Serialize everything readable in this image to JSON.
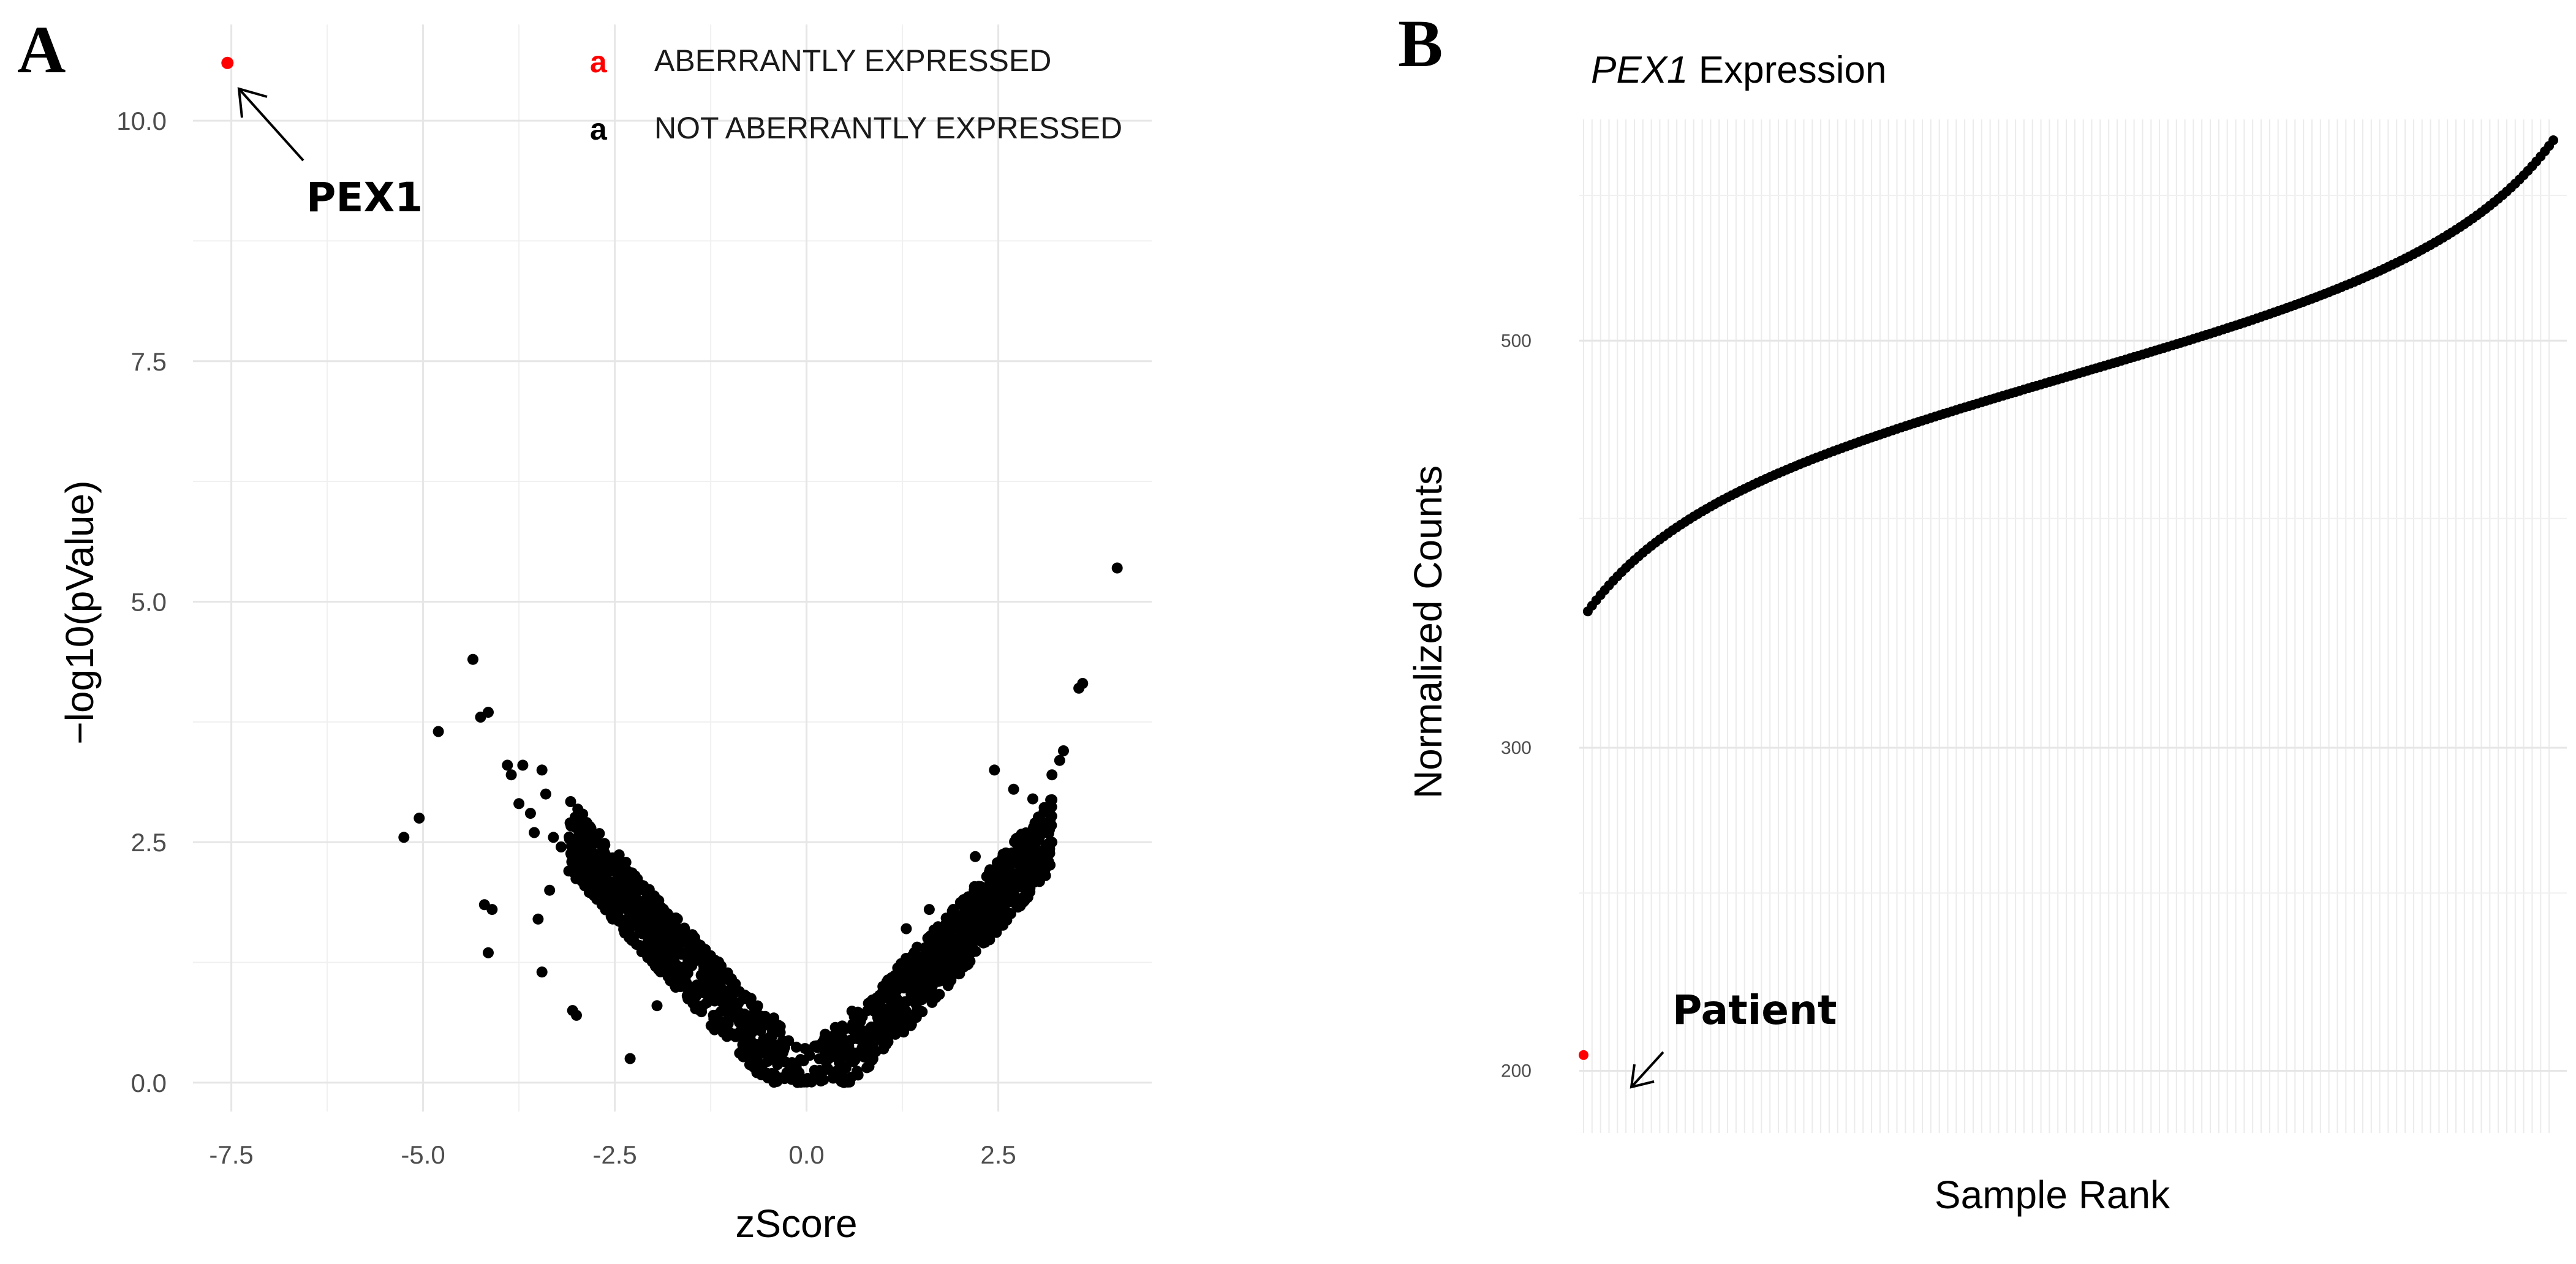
{
  "panels": {
    "a": {
      "letter": "A",
      "annotation": "PEX1",
      "legend": [
        {
          "key": "a",
          "label": "ABERRANTLY EXPRESSED",
          "color": "#ff0000"
        },
        {
          "key": "a",
          "label": "NOT ABERRANTLY EXPRESSED",
          "color": "#000000"
        }
      ]
    },
    "b": {
      "letter": "B",
      "title_gene": "PEX1",
      "title_rest": " Expression",
      "annotation": "Patient"
    }
  },
  "colors": {
    "aberrant": "#ff0000",
    "not_aberrant": "#000000"
  },
  "chart_data": [
    {
      "type": "scatter",
      "title": "",
      "xlabel": "zScore",
      "ylabel": "−log10(pValue)",
      "xlim": [
        -8.0,
        4.5
      ],
      "ylim": [
        -0.3,
        11.0
      ],
      "x_ticks": [
        -7.5,
        -5.0,
        -2.5,
        0.0,
        2.5
      ],
      "x_tick_labels": [
        "-7.5",
        "-5.0",
        "-2.5",
        "0.0",
        "2.5"
      ],
      "y_ticks": [
        0.0,
        2.5,
        5.0,
        7.5,
        10.0
      ],
      "y_tick_labels": [
        "0.0",
        "2.5",
        "5.0",
        "7.5",
        "10.0"
      ],
      "grid": true,
      "legend_position": "top-right",
      "series": [
        {
          "name": "ABERRANTLY EXPRESSED",
          "color": "#ff0000",
          "points": [
            [
              -7.55,
              10.6
            ]
          ]
        },
        {
          "name": "NOT ABERRANTLY EXPRESSED",
          "color": "#000000",
          "points": [
            [
              -5.25,
              2.55
            ],
            [
              -5.05,
              2.75
            ],
            [
              -4.8,
              3.65
            ],
            [
              -4.35,
              4.4
            ],
            [
              -4.25,
              3.8
            ],
            [
              -4.15,
              3.85
            ],
            [
              -4.2,
              1.85
            ],
            [
              -4.1,
              1.8
            ],
            [
              -4.15,
              1.35
            ],
            [
              -3.9,
              3.3
            ],
            [
              -3.85,
              3.2
            ],
            [
              -3.7,
              3.3
            ],
            [
              -3.75,
              2.9
            ],
            [
              -3.6,
              2.8
            ],
            [
              -3.55,
              2.6
            ],
            [
              -3.45,
              3.25
            ],
            [
              -3.4,
              3.0
            ],
            [
              -3.5,
              1.7
            ],
            [
              -3.45,
              1.15
            ],
            [
              -3.35,
              2.0
            ],
            [
              -3.3,
              2.55
            ],
            [
              -3.2,
              2.45
            ],
            [
              -3.1,
              2.2
            ],
            [
              -3.05,
              0.75
            ],
            [
              -3.0,
              0.7
            ],
            [
              3.2,
              3.2
            ],
            [
              3.3,
              3.35
            ],
            [
              3.35,
              3.45
            ],
            [
              3.55,
              4.1
            ],
            [
              3.6,
              4.15
            ],
            [
              4.05,
              5.35
            ],
            [
              2.45,
              3.25
            ],
            [
              2.7,
              3.05
            ],
            [
              2.95,
              2.95
            ],
            [
              3.1,
              2.7
            ],
            [
              1.3,
              1.6
            ],
            [
              1.5,
              1.25
            ],
            [
              1.6,
              1.8
            ],
            [
              2.2,
              2.35
            ],
            [
              -1.6,
              1.0
            ],
            [
              -1.2,
              0.55
            ],
            [
              -1.95,
              0.8
            ],
            [
              -2.3,
              0.25
            ],
            [
              -0.85,
              0.3
            ],
            [
              0.75,
              0.35
            ]
          ]
        }
      ]
    },
    {
      "type": "scatter",
      "title": "PEX1 Expression",
      "xlabel": "Sample Rank",
      "ylabel": "Normalized  Counts",
      "ylim": [
        185,
        660
      ],
      "y_scale": "log",
      "y_ticks": [
        200,
        300,
        500
      ],
      "y_tick_labels": [
        "200",
        "300",
        "500"
      ],
      "grid": true,
      "n_samples": 230,
      "patient_rank": 1,
      "patient_value": 204,
      "other_samples_range": [
        356,
        643
      ],
      "series": [
        {
          "name": "Patient",
          "color": "#ff0000"
        },
        {
          "color": "#000000"
        }
      ]
    }
  ]
}
